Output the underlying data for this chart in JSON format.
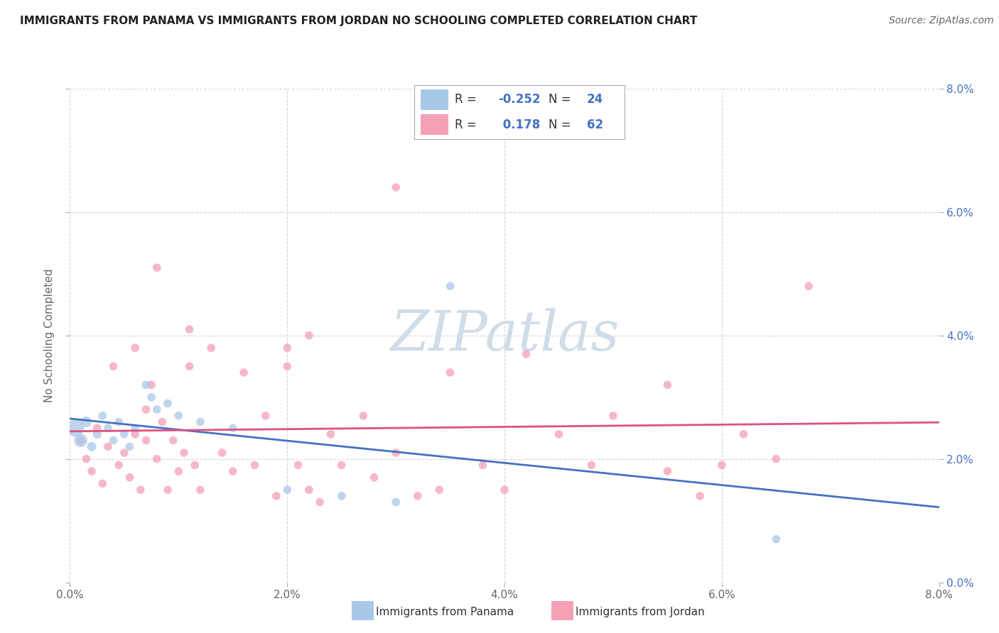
{
  "title": "IMMIGRANTS FROM PANAMA VS IMMIGRANTS FROM JORDAN NO SCHOOLING COMPLETED CORRELATION CHART",
  "source": "Source: ZipAtlas.com",
  "ylabel": "No Schooling Completed",
  "panama_label": "Immigrants from Panama",
  "jordan_label": "Immigrants from Jordan",
  "panama_R": -0.252,
  "panama_N": 24,
  "jordan_R": 0.178,
  "jordan_N": 62,
  "panama_color": "#a8c8e8",
  "jordan_color": "#f4a0b5",
  "panama_line_color": "#4472c4",
  "jordan_line_color": "#e05080",
  "watermark_color": "#d0dce8",
  "background_color": "#ffffff",
  "grid_color": "#cccccc",
  "panama_scatter": [
    [
      0.05,
      2.5
    ],
    [
      0.1,
      2.3
    ],
    [
      0.15,
      2.6
    ],
    [
      0.2,
      2.2
    ],
    [
      0.25,
      2.4
    ],
    [
      0.3,
      2.7
    ],
    [
      0.35,
      2.5
    ],
    [
      0.4,
      2.3
    ],
    [
      0.45,
      2.6
    ],
    [
      0.5,
      2.4
    ],
    [
      0.55,
      2.2
    ],
    [
      0.6,
      2.5
    ],
    [
      0.7,
      3.2
    ],
    [
      0.75,
      3.0
    ],
    [
      0.8,
      2.8
    ],
    [
      0.9,
      2.9
    ],
    [
      1.0,
      2.7
    ],
    [
      1.2,
      2.6
    ],
    [
      1.5,
      2.5
    ],
    [
      2.0,
      1.5
    ],
    [
      2.5,
      1.4
    ],
    [
      3.5,
      4.8
    ],
    [
      6.5,
      0.7
    ],
    [
      3.0,
      1.3
    ]
  ],
  "panama_sizes": [
    300,
    180,
    120,
    90,
    80,
    70,
    70,
    70,
    70,
    70,
    70,
    70,
    70,
    70,
    70,
    70,
    70,
    70,
    70,
    70,
    70,
    70,
    70,
    70
  ],
  "jordan_scatter": [
    [
      0.1,
      2.3
    ],
    [
      0.15,
      2.0
    ],
    [
      0.2,
      1.8
    ],
    [
      0.25,
      2.5
    ],
    [
      0.3,
      1.6
    ],
    [
      0.35,
      2.2
    ],
    [
      0.4,
      3.5
    ],
    [
      0.45,
      1.9
    ],
    [
      0.5,
      2.1
    ],
    [
      0.55,
      1.7
    ],
    [
      0.6,
      2.4
    ],
    [
      0.65,
      1.5
    ],
    [
      0.7,
      2.8
    ],
    [
      0.75,
      3.2
    ],
    [
      0.8,
      2.0
    ],
    [
      0.85,
      2.6
    ],
    [
      0.9,
      1.5
    ],
    [
      0.95,
      2.3
    ],
    [
      1.0,
      1.8
    ],
    [
      1.05,
      2.1
    ],
    [
      1.1,
      3.5
    ],
    [
      1.15,
      1.9
    ],
    [
      1.2,
      1.5
    ],
    [
      1.3,
      3.8
    ],
    [
      1.4,
      2.1
    ],
    [
      1.5,
      1.8
    ],
    [
      1.6,
      3.4
    ],
    [
      1.7,
      1.9
    ],
    [
      1.8,
      2.7
    ],
    [
      1.9,
      1.4
    ],
    [
      2.0,
      3.5
    ],
    [
      2.1,
      1.9
    ],
    [
      2.2,
      1.5
    ],
    [
      2.3,
      1.3
    ],
    [
      2.4,
      2.4
    ],
    [
      2.5,
      1.9
    ],
    [
      2.7,
      2.7
    ],
    [
      2.8,
      1.7
    ],
    [
      3.0,
      2.1
    ],
    [
      3.2,
      1.4
    ],
    [
      3.4,
      1.5
    ],
    [
      3.5,
      3.4
    ],
    [
      3.8,
      1.9
    ],
    [
      4.0,
      1.5
    ],
    [
      4.2,
      3.7
    ],
    [
      4.5,
      2.4
    ],
    [
      4.8,
      1.9
    ],
    [
      5.0,
      2.7
    ],
    [
      5.5,
      1.8
    ],
    [
      5.8,
      1.4
    ],
    [
      6.0,
      1.9
    ],
    [
      6.2,
      2.4
    ],
    [
      6.5,
      2.0
    ],
    [
      3.0,
      6.4
    ],
    [
      5.5,
      3.2
    ],
    [
      6.8,
      4.8
    ],
    [
      1.1,
      4.1
    ],
    [
      0.8,
      5.1
    ],
    [
      0.7,
      2.3
    ],
    [
      0.6,
      3.8
    ],
    [
      2.0,
      3.8
    ],
    [
      2.2,
      4.0
    ]
  ],
  "jordan_sizes": [
    70,
    70,
    70,
    70,
    70,
    70,
    70,
    70,
    70,
    70,
    70,
    70,
    70,
    70,
    70,
    70,
    70,
    70,
    70,
    70,
    70,
    70,
    70,
    70,
    70,
    70,
    70,
    70,
    70,
    70,
    70,
    70,
    70,
    70,
    70,
    70,
    70,
    70,
    70,
    70,
    70,
    70,
    70,
    70,
    70,
    70,
    70,
    70,
    70,
    70,
    70,
    70,
    70,
    70,
    70,
    70,
    70,
    70,
    70,
    70,
    70,
    70
  ],
  "xlim": [
    0.0,
    8.0
  ],
  "ylim": [
    0.0,
    8.0
  ],
  "tick_vals": [
    0.0,
    2.0,
    4.0,
    6.0,
    8.0
  ],
  "tick_labels": [
    "0.0%",
    "2.0%",
    "4.0%",
    "6.0%",
    "8.0%"
  ]
}
